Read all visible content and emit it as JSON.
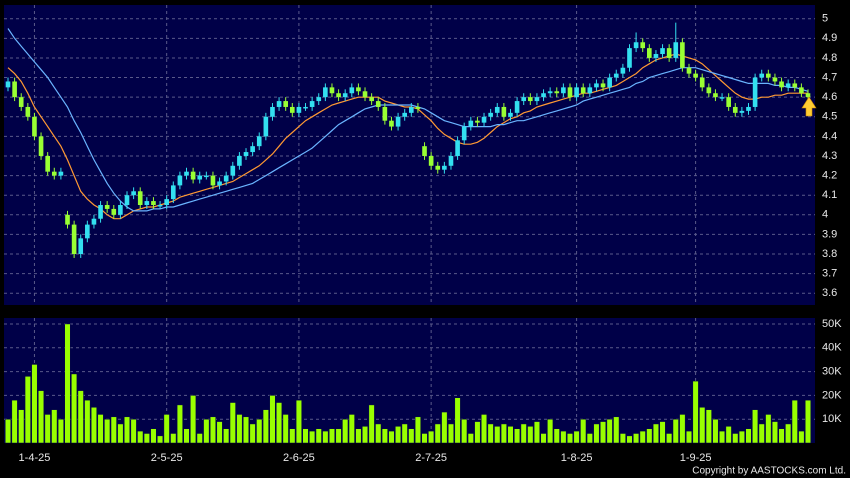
{
  "chart_data": [
    {
      "type": "candlestick",
      "up_color": "#33e0f0",
      "down_color": "#99ff33",
      "grid": true,
      "ylim": [
        3.54,
        5.07
      ],
      "yticks": [
        3.6,
        3.7,
        3.8,
        3.9,
        4,
        4.1,
        4.2,
        4.3,
        4.4,
        4.5,
        4.6,
        4.7,
        4.8,
        4.9,
        5
      ],
      "open": [
        4.65,
        4.68,
        4.6,
        4.55,
        4.5,
        4.4,
        4.3,
        4.22,
        4.2,
        4.0,
        3.95,
        3.8,
        3.88,
        3.95,
        3.98,
        4.05,
        4.03,
        4.0,
        4.05,
        4.1,
        4.12,
        4.05,
        4.07,
        4.05,
        4.05,
        4.08,
        4.15,
        4.2,
        4.22,
        4.18,
        4.2,
        4.2,
        4.15,
        4.17,
        4.2,
        4.25,
        4.3,
        4.32,
        4.35,
        4.4,
        4.5,
        4.55,
        4.58,
        4.55,
        4.52,
        4.55,
        4.55,
        4.58,
        4.6,
        4.65,
        4.62,
        4.6,
        4.62,
        4.65,
        4.63,
        4.6,
        4.58,
        4.55,
        4.48,
        4.45,
        4.5,
        4.52,
        4.55,
        4.35,
        4.3,
        4.25,
        4.23,
        4.25,
        4.3,
        4.38,
        4.45,
        4.48,
        4.47,
        4.5,
        4.52,
        4.55,
        4.5,
        4.52,
        4.58,
        4.6,
        4.58,
        4.6,
        4.62,
        4.63,
        4.62,
        4.65,
        4.6,
        4.65,
        4.62,
        4.65,
        4.67,
        4.65,
        4.7,
        4.72,
        4.75,
        4.85,
        4.88,
        4.85,
        4.8,
        4.82,
        4.85,
        4.8,
        4.88,
        4.75,
        4.72,
        4.7,
        4.65,
        4.62,
        4.6,
        4.6,
        4.55,
        4.52,
        4.53,
        4.55,
        4.7,
        4.72,
        4.7,
        4.68,
        4.65,
        4.67,
        4.65,
        4.62
      ],
      "high": [
        4.7,
        4.7,
        4.62,
        4.57,
        4.52,
        4.42,
        4.32,
        4.24,
        4.24,
        4.02,
        3.97,
        3.9,
        3.97,
        4.0,
        4.07,
        4.07,
        4.05,
        4.07,
        4.12,
        4.14,
        4.14,
        4.09,
        4.09,
        4.07,
        4.1,
        4.17,
        4.22,
        4.24,
        4.24,
        4.22,
        4.22,
        4.22,
        4.19,
        4.22,
        4.27,
        4.32,
        4.34,
        4.37,
        4.42,
        4.52,
        4.57,
        4.6,
        4.6,
        4.57,
        4.57,
        4.57,
        4.6,
        4.62,
        4.67,
        4.67,
        4.64,
        4.64,
        4.67,
        4.67,
        4.65,
        4.62,
        4.6,
        4.57,
        4.5,
        4.52,
        4.54,
        4.57,
        4.57,
        4.37,
        4.32,
        4.27,
        4.27,
        4.32,
        4.4,
        4.47,
        4.5,
        4.5,
        4.52,
        4.54,
        4.57,
        4.57,
        4.54,
        4.6,
        4.62,
        4.62,
        4.62,
        4.64,
        4.65,
        4.65,
        4.67,
        4.67,
        4.67,
        4.67,
        4.67,
        4.69,
        4.69,
        4.72,
        4.74,
        4.77,
        4.87,
        4.93,
        4.9,
        4.87,
        4.84,
        4.87,
        4.87,
        4.98,
        4.9,
        4.77,
        4.74,
        4.72,
        4.67,
        4.64,
        4.62,
        4.62,
        4.57,
        4.55,
        4.57,
        4.72,
        4.74,
        4.74,
        4.72,
        4.7,
        4.69,
        4.69,
        4.67,
        4.64
      ],
      "low": [
        4.63,
        4.58,
        4.53,
        4.48,
        4.38,
        4.28,
        4.2,
        4.18,
        4.18,
        3.93,
        3.78,
        3.78,
        3.86,
        3.93,
        3.96,
        4.01,
        3.98,
        3.98,
        4.03,
        4.08,
        4.03,
        4.03,
        4.03,
        4.03,
        4.03,
        4.06,
        4.13,
        4.18,
        4.16,
        4.16,
        4.18,
        4.13,
        4.13,
        4.15,
        4.18,
        4.23,
        4.28,
        4.3,
        4.33,
        4.38,
        4.48,
        4.53,
        4.53,
        4.5,
        4.5,
        4.53,
        4.53,
        4.56,
        4.58,
        4.6,
        4.58,
        4.58,
        4.6,
        4.61,
        4.58,
        4.56,
        4.53,
        4.46,
        4.43,
        4.43,
        4.48,
        4.5,
        4.52,
        4.28,
        4.23,
        4.21,
        4.21,
        4.23,
        4.28,
        4.36,
        4.43,
        4.45,
        4.45,
        4.48,
        4.5,
        4.48,
        4.48,
        4.5,
        4.56,
        4.56,
        4.56,
        4.58,
        4.6,
        4.6,
        4.6,
        4.58,
        4.58,
        4.6,
        4.6,
        4.63,
        4.63,
        4.63,
        4.68,
        4.7,
        4.73,
        4.83,
        4.83,
        4.78,
        4.78,
        4.8,
        4.78,
        4.78,
        4.73,
        4.7,
        4.68,
        4.63,
        4.6,
        4.58,
        4.58,
        4.53,
        4.5,
        4.5,
        4.51,
        4.53,
        4.68,
        4.68,
        4.66,
        4.63,
        4.63,
        4.63,
        4.6,
        4.58
      ],
      "close": [
        4.68,
        4.6,
        4.55,
        4.5,
        4.4,
        4.3,
        4.22,
        4.2,
        4.22,
        3.95,
        3.8,
        3.88,
        3.95,
        3.98,
        4.05,
        4.03,
        4.0,
        4.05,
        4.1,
        4.12,
        4.05,
        4.07,
        4.05,
        4.05,
        4.08,
        4.15,
        4.2,
        4.22,
        4.18,
        4.2,
        4.2,
        4.15,
        4.17,
        4.2,
        4.25,
        4.3,
        4.32,
        4.35,
        4.4,
        4.5,
        4.55,
        4.58,
        4.55,
        4.52,
        4.55,
        4.55,
        4.58,
        4.6,
        4.65,
        4.62,
        4.6,
        4.62,
        4.65,
        4.63,
        4.6,
        4.58,
        4.55,
        4.48,
        4.45,
        4.5,
        4.52,
        4.55,
        4.54,
        4.3,
        4.25,
        4.23,
        4.25,
        4.3,
        4.38,
        4.45,
        4.48,
        4.47,
        4.5,
        4.52,
        4.55,
        4.5,
        4.52,
        4.58,
        4.6,
        4.58,
        4.6,
        4.62,
        4.63,
        4.62,
        4.65,
        4.6,
        4.65,
        4.62,
        4.65,
        4.67,
        4.65,
        4.7,
        4.72,
        4.75,
        4.85,
        4.88,
        4.85,
        4.8,
        4.82,
        4.85,
        4.8,
        4.88,
        4.75,
        4.72,
        4.7,
        4.65,
        4.62,
        4.6,
        4.6,
        4.55,
        4.52,
        4.53,
        4.55,
        4.7,
        4.72,
        4.7,
        4.68,
        4.65,
        4.67,
        4.65,
        4.62,
        4.6
      ],
      "series": [
        {
          "color": "#ff9933",
          "values": [
            4.75,
            4.72,
            4.68,
            4.62,
            4.55,
            4.5,
            4.45,
            4.4,
            4.35,
            4.28,
            4.2,
            4.12,
            4.08,
            4.05,
            4.03,
            4.0,
            3.98,
            3.98,
            4.0,
            4.02,
            4.03,
            4.04,
            4.04,
            4.05,
            4.06,
            4.07,
            4.09,
            4.1,
            4.11,
            4.12,
            4.13,
            4.14,
            4.15,
            4.16,
            4.17,
            4.19,
            4.21,
            4.23,
            4.25,
            4.28,
            4.31,
            4.35,
            4.39,
            4.42,
            4.45,
            4.48,
            4.5,
            4.52,
            4.54,
            4.56,
            4.57,
            4.58,
            4.59,
            4.6,
            4.6,
            4.6,
            4.6,
            4.58,
            4.57,
            4.56,
            4.55,
            4.55,
            4.54,
            4.51,
            4.48,
            4.44,
            4.41,
            4.39,
            4.37,
            4.36,
            4.36,
            4.37,
            4.39,
            4.42,
            4.45,
            4.47,
            4.49,
            4.5,
            4.52,
            4.53,
            4.55,
            4.56,
            4.57,
            4.58,
            4.59,
            4.6,
            4.61,
            4.62,
            4.62,
            4.63,
            4.64,
            4.65,
            4.66,
            4.68,
            4.7,
            4.72,
            4.75,
            4.77,
            4.79,
            4.8,
            4.81,
            4.82,
            4.81,
            4.8,
            4.79,
            4.77,
            4.74,
            4.71,
            4.68,
            4.65,
            4.62,
            4.6,
            4.59,
            4.59,
            4.6,
            4.6,
            4.61,
            4.61,
            4.62,
            4.62,
            4.62,
            4.62
          ]
        },
        {
          "color": "#6ab4ff",
          "values": [
            4.95,
            4.9,
            4.86,
            4.82,
            4.78,
            4.74,
            4.7,
            4.65,
            4.6,
            4.55,
            4.48,
            4.42,
            4.35,
            4.28,
            4.22,
            4.16,
            4.11,
            4.07,
            4.04,
            4.02,
            4.02,
            4.02,
            4.03,
            4.03,
            4.04,
            4.04,
            4.05,
            4.06,
            4.07,
            4.08,
            4.09,
            4.1,
            4.11,
            4.12,
            4.13,
            4.14,
            4.15,
            4.16,
            4.18,
            4.2,
            4.22,
            4.24,
            4.26,
            4.28,
            4.3,
            4.32,
            4.34,
            4.37,
            4.4,
            4.43,
            4.46,
            4.48,
            4.5,
            4.52,
            4.54,
            4.55,
            4.56,
            4.56,
            4.56,
            4.56,
            4.56,
            4.56,
            4.55,
            4.54,
            4.52,
            4.5,
            4.48,
            4.47,
            4.46,
            4.45,
            4.45,
            4.45,
            4.45,
            4.45,
            4.46,
            4.46,
            4.47,
            4.48,
            4.48,
            4.49,
            4.5,
            4.51,
            4.52,
            4.53,
            4.54,
            4.55,
            4.56,
            4.58,
            4.59,
            4.6,
            4.61,
            4.62,
            4.63,
            4.64,
            4.65,
            4.67,
            4.68,
            4.7,
            4.71,
            4.72,
            4.73,
            4.74,
            4.75,
            4.75,
            4.75,
            4.74,
            4.73,
            4.72,
            4.71,
            4.7,
            4.69,
            4.68,
            4.67,
            4.67,
            4.67,
            4.67,
            4.66,
            4.66,
            4.65,
            4.65,
            4.64,
            4.63
          ]
        }
      ]
    },
    {
      "type": "bar",
      "color": "#99ff00",
      "grid": true,
      "ylim": [
        0,
        52500
      ],
      "yticks": [
        {
          "value": 10000,
          "label": "10K"
        },
        {
          "value": 20000,
          "label": "20K"
        },
        {
          "value": 30000,
          "label": "30K"
        },
        {
          "value": 40000,
          "label": "40K"
        },
        {
          "value": 50000,
          "label": "50K"
        }
      ],
      "categories": [
        null,
        null,
        null,
        null,
        "1-4-25",
        null,
        null,
        null,
        null,
        null,
        null,
        null,
        null,
        null,
        null,
        null,
        null,
        null,
        null,
        null,
        null,
        null,
        null,
        null,
        "2-5-25",
        null,
        null,
        null,
        null,
        null,
        null,
        null,
        null,
        null,
        null,
        null,
        null,
        null,
        null,
        null,
        null,
        null,
        null,
        null,
        "2-6-25",
        null,
        null,
        null,
        null,
        null,
        null,
        null,
        null,
        null,
        null,
        null,
        null,
        null,
        null,
        null,
        null,
        null,
        null,
        null,
        "2-7-25",
        null,
        null,
        null,
        null,
        null,
        null,
        null,
        null,
        null,
        null,
        null,
        null,
        null,
        null,
        null,
        null,
        null,
        null,
        null,
        null,
        null,
        "1-8-25",
        null,
        null,
        null,
        null,
        null,
        null,
        null,
        null,
        null,
        null,
        null,
        null,
        null,
        null,
        null,
        null,
        null,
        "1-9-25",
        null,
        null,
        null,
        null,
        null,
        null,
        null,
        null,
        null,
        null,
        null,
        null,
        null,
        null,
        null,
        null,
        null
      ],
      "values": [
        10000,
        18000,
        14000,
        28000,
        33000,
        22000,
        12000,
        14000,
        10000,
        50000,
        29000,
        22000,
        18000,
        15000,
        12000,
        10000,
        11000,
        8000,
        11000,
        10000,
        5000,
        4000,
        6000,
        3000,
        12000,
        4000,
        16000,
        6000,
        20000,
        4000,
        10000,
        11000,
        9000,
        6000,
        17000,
        12000,
        11000,
        8000,
        10000,
        14000,
        20000,
        17000,
        12000,
        6000,
        18000,
        6000,
        5000,
        6000,
        5000,
        6000,
        6000,
        10000,
        12000,
        6000,
        7000,
        16000,
        8000,
        6000,
        5000,
        7000,
        8000,
        6000,
        11000,
        4000,
        5000,
        8000,
        13000,
        8000,
        19000,
        10000,
        4000,
        9000,
        12000,
        8000,
        7000,
        8000,
        7000,
        6000,
        8000,
        7000,
        9000,
        4000,
        10000,
        6000,
        5000,
        4000,
        5000,
        10000,
        4000,
        8000,
        9000,
        10000,
        11000,
        4000,
        3000,
        4000,
        5000,
        6000,
        8000,
        9000,
        4000,
        10000,
        12000,
        5000,
        26000,
        15000,
        14000,
        10000,
        5000,
        7000,
        4000,
        5000,
        6000,
        14000,
        8000,
        12000,
        9000,
        6000,
        8000,
        18000,
        5000,
        18000
      ],
      "credit": "Copyright by AASTOCKS.com Ltd."
    }
  ]
}
